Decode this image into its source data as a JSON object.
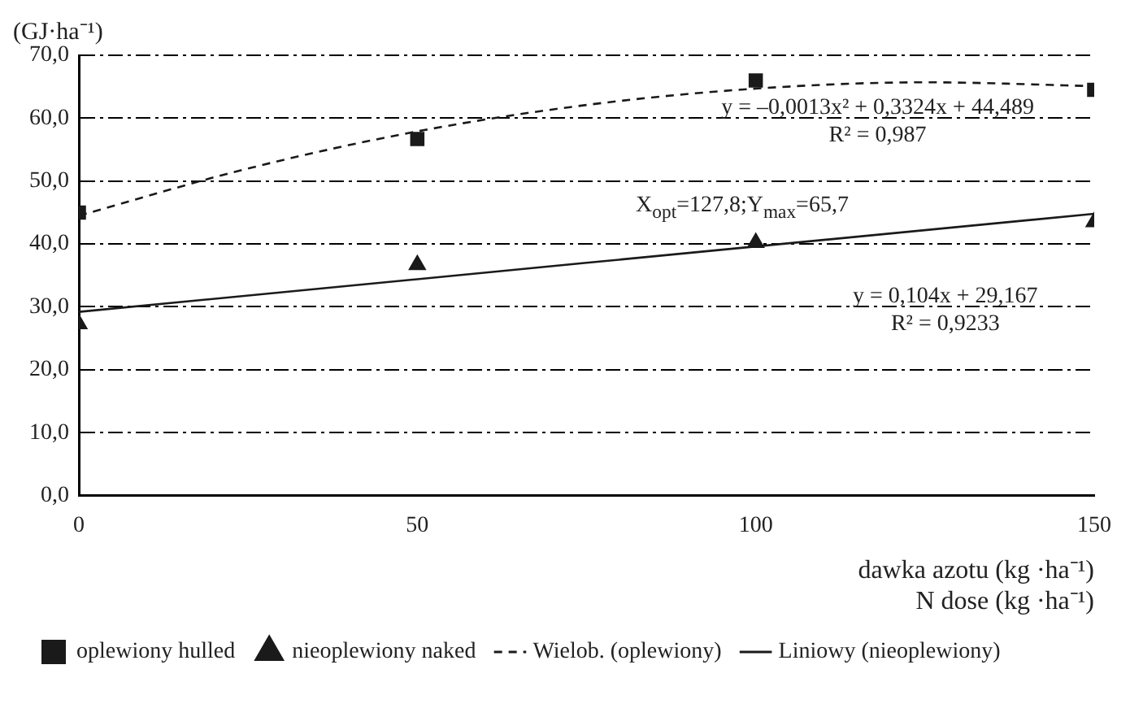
{
  "chart_data": {
    "type": "scatter",
    "ylabel": "(GJ·ha⁻¹)",
    "xlabel": "dawka azotu (kg ·ha⁻¹)\nN dose (kg ·ha⁻¹)",
    "xlim": [
      0,
      150
    ],
    "xticks": [
      0,
      50,
      100,
      150
    ],
    "ylim": [
      0,
      70
    ],
    "yticks": [
      {
        "value": 0,
        "label": "0,0"
      },
      {
        "value": 10,
        "label": "10,0"
      },
      {
        "value": 20,
        "label": "20,0"
      },
      {
        "value": 30,
        "label": "30,0"
      },
      {
        "value": 40,
        "label": "40,0"
      },
      {
        "value": 50,
        "label": "50,0"
      },
      {
        "value": 60,
        "label": "60,0"
      },
      {
        "value": 70,
        "label": "70,0"
      }
    ],
    "grid": "y",
    "legend": "bottom",
    "series": [
      {
        "name": "oplewiony hulled",
        "type": "scatter",
        "marker": "square",
        "color": "#1a1a1a",
        "x": [
          0,
          50,
          100,
          150
        ],
        "values": [
          45.0,
          56.7,
          66.0,
          64.5
        ]
      },
      {
        "name": "nieoplewiony naked",
        "type": "scatter",
        "marker": "triangle",
        "color": "#1a1a1a",
        "x": [
          0,
          50,
          100,
          150
        ],
        "values": [
          27.3,
          36.7,
          40.2,
          43.5
        ]
      },
      {
        "name": "Wielob. (oplewiony)",
        "type": "line",
        "line_style": "dashed",
        "marker": "none",
        "color": "#1a1a1a",
        "x": [
          0,
          25,
          50,
          75,
          100,
          125,
          150
        ],
        "values": [
          44.5,
          52.0,
          57.9,
          62.1,
          64.7,
          65.7,
          65.1
        ]
      },
      {
        "name": "Liniowy (nieoplewiony)",
        "type": "line",
        "line_style": "solid",
        "marker": "none",
        "color": "#1a1a1a",
        "x": [
          0,
          150
        ],
        "values": [
          29.2,
          44.8
        ]
      }
    ],
    "annotations": [
      "y = –0,0013x² + 0,3324x + 44,489",
      "R² = 0,987",
      "X$_{opt}$=127,8;Y$_{max}$=65,7",
      "y = 0,104x + 29,167",
      "R² = 0,9233"
    ]
  }
}
